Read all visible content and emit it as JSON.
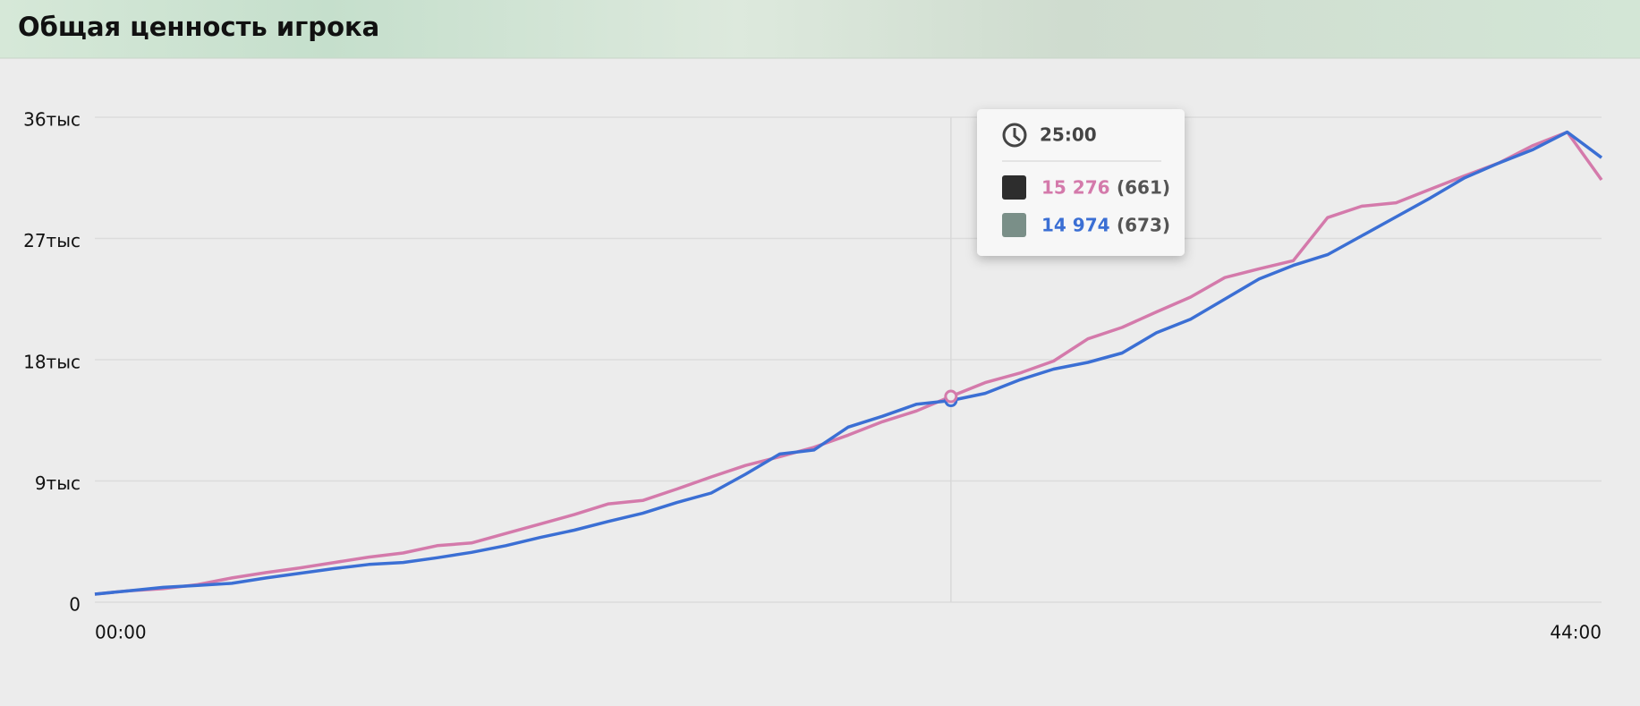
{
  "chart_data": {
    "type": "line",
    "title": "Общая ценность игрока",
    "x": [
      0,
      1,
      2,
      3,
      4,
      5,
      6,
      7,
      8,
      9,
      10,
      11,
      12,
      13,
      14,
      15,
      16,
      17,
      18,
      19,
      20,
      21,
      22,
      23,
      24,
      25,
      26,
      27,
      28,
      29,
      30,
      31,
      32,
      33,
      34,
      35,
      36,
      37,
      38,
      39,
      40,
      41,
      42,
      43,
      44
    ],
    "xlim": [
      0,
      44
    ],
    "xticks": [
      {
        "value": 0,
        "label": "00:00"
      },
      {
        "value": 44,
        "label": "44:00"
      }
    ],
    "ylim": [
      0,
      36000
    ],
    "yticks": [
      {
        "value": 0,
        "label": "0"
      },
      {
        "value": 9000,
        "label": "9тыс"
      },
      {
        "value": 18000,
        "label": "18тыс"
      },
      {
        "value": 27000,
        "label": "27тыс"
      },
      {
        "value": 36000,
        "label": "36тыс"
      }
    ],
    "grid": true,
    "series": [
      {
        "color": "#d47aab",
        "values": [
          600,
          850,
          1000,
          1300,
          1800,
          2200,
          2550,
          2950,
          3350,
          3650,
          4200,
          4400,
          5100,
          5800,
          6500,
          7300,
          7550,
          8400,
          9300,
          10150,
          10800,
          11500,
          12400,
          13400,
          14200,
          15276,
          16300,
          17000,
          17900,
          19550,
          20400,
          21550,
          22650,
          24100,
          24750,
          25350,
          28550,
          29400,
          29650,
          30650,
          31650,
          32600,
          33900,
          34900,
          31350
        ]
      },
      {
        "color": "#3b6fd4",
        "values": [
          600,
          850,
          1100,
          1250,
          1400,
          1800,
          2150,
          2500,
          2800,
          2950,
          3300,
          3700,
          4200,
          4800,
          5350,
          6000,
          6600,
          7400,
          8100,
          9500,
          11000,
          11300,
          13000,
          13800,
          14700,
          14974,
          15500,
          16500,
          17300,
          17800,
          18500,
          20000,
          21000,
          22500,
          24000,
          25000,
          25800,
          27200,
          28600,
          30000,
          31500,
          32600,
          33600,
          34900,
          33000
        ]
      }
    ],
    "tooltip": {
      "index": 25,
      "time": "25:00",
      "entries": [
        {
          "value": "15 276",
          "extra": "(661)"
        },
        {
          "value": "14 974",
          "extra": "(673)"
        }
      ]
    }
  }
}
